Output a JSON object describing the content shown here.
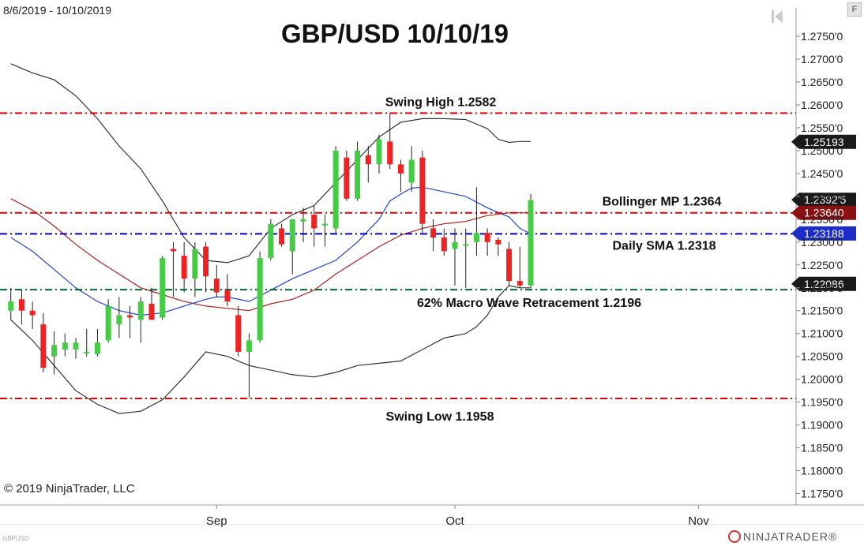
{
  "header": {
    "date_range": "8/6/2019 - 10/10/2019",
    "title": "GBP/USD 10/10/19"
  },
  "footer": {
    "copyright": "© 2019 NinjaTrader, LLC",
    "symbol": "GBPUSD",
    "logo": "NINJATRADER®"
  },
  "toolbar": {
    "f_label": "F",
    "back_icon": "skip-back-icon"
  },
  "colors": {
    "up": "#44cc44",
    "down": "#ee2222",
    "bb_band": "#333333",
    "bb_mid": "#aa2222",
    "sma": "#2244cc",
    "red_line": "#dd0000",
    "blue_line": "#0000cc",
    "green_line": "#006633"
  },
  "chart_data": {
    "type": "candlestick",
    "title": "GBP/USD 10/10/19",
    "ylim": [
      1.1725,
      1.2795
    ],
    "y_ticks": [
      "1.2750'0",
      "1.2700'0",
      "1.2650'0",
      "1.2600'0",
      "1.2550'0",
      "1.2500'0",
      "1.2450'0",
      "1.2400'0",
      "1.2350'0",
      "1.2300'0",
      "1.2250'0",
      "1.2200'0",
      "1.2150'0",
      "1.2100'0",
      "1.2050'0",
      "1.2000'0",
      "1.1950'0",
      "1.1900'0",
      "1.1850'0",
      "1.1800'0",
      "1.1750'0"
    ],
    "x_ticks": [
      "Sep",
      "Oct",
      "Nov"
    ],
    "x_tick_index": [
      19,
      41,
      63.5
    ],
    "x_index_range": [
      -1,
      72.5
    ],
    "candles": [
      {
        "o": 1.215,
        "h": 1.22,
        "l": 1.213,
        "c": 1.217
      },
      {
        "o": 1.2175,
        "h": 1.2195,
        "l": 1.212,
        "c": 1.215
      },
      {
        "o": 1.215,
        "h": 1.217,
        "l": 1.211,
        "c": 1.214
      },
      {
        "o": 1.212,
        "h": 1.2145,
        "l": 1.2015,
        "c": 1.2025
      },
      {
        "o": 1.205,
        "h": 1.2105,
        "l": 1.201,
        "c": 1.2075
      },
      {
        "o": 1.2065,
        "h": 1.21,
        "l": 1.205,
        "c": 1.208
      },
      {
        "o": 1.2065,
        "h": 1.209,
        "l": 1.2045,
        "c": 1.208
      },
      {
        "o": 1.206,
        "h": 1.211,
        "l": 1.205,
        "c": 1.206
      },
      {
        "o": 1.2055,
        "h": 1.211,
        "l": 1.205,
        "c": 1.208
      },
      {
        "o": 1.2085,
        "h": 1.2175,
        "l": 1.208,
        "c": 1.216
      },
      {
        "o": 1.212,
        "h": 1.218,
        "l": 1.209,
        "c": 1.214
      },
      {
        "o": 1.214,
        "h": 1.216,
        "l": 1.209,
        "c": 1.2135
      },
      {
        "o": 1.213,
        "h": 1.218,
        "l": 1.208,
        "c": 1.217
      },
      {
        "o": 1.2165,
        "h": 1.22,
        "l": 1.213,
        "c": 1.213
      },
      {
        "o": 1.2135,
        "h": 1.227,
        "l": 1.213,
        "c": 1.2265
      },
      {
        "o": 1.2285,
        "h": 1.23,
        "l": 1.218,
        "c": 1.228
      },
      {
        "o": 1.227,
        "h": 1.23,
        "l": 1.219,
        "c": 1.222
      },
      {
        "o": 1.222,
        "h": 1.23,
        "l": 1.218,
        "c": 1.2285
      },
      {
        "o": 1.229,
        "h": 1.23,
        "l": 1.219,
        "c": 1.2225
      },
      {
        "o": 1.222,
        "h": 1.225,
        "l": 1.218,
        "c": 1.219
      },
      {
        "o": 1.2195,
        "h": 1.223,
        "l": 1.216,
        "c": 1.217
      },
      {
        "o": 1.214,
        "h": 1.216,
        "l": 1.205,
        "c": 1.206
      },
      {
        "o": 1.206,
        "h": 1.21,
        "l": 1.196,
        "c": 1.2085
      },
      {
        "o": 1.2085,
        "h": 1.228,
        "l": 1.208,
        "c": 1.2265
      },
      {
        "o": 1.2265,
        "h": 1.235,
        "l": 1.226,
        "c": 1.234
      },
      {
        "o": 1.233,
        "h": 1.234,
        "l": 1.229,
        "c": 1.2295
      },
      {
        "o": 1.228,
        "h": 1.235,
        "l": 1.223,
        "c": 1.235
      },
      {
        "o": 1.2345,
        "h": 1.2375,
        "l": 1.23,
        "c": 1.235
      },
      {
        "o": 1.236,
        "h": 1.238,
        "l": 1.229,
        "c": 1.233
      },
      {
        "o": 1.234,
        "h": 1.236,
        "l": 1.229,
        "c": 1.234
      },
      {
        "o": 1.233,
        "h": 1.251,
        "l": 1.232,
        "c": 1.25
      },
      {
        "o": 1.2485,
        "h": 1.25,
        "l": 1.239,
        "c": 1.2395
      },
      {
        "o": 1.2395,
        "h": 1.252,
        "l": 1.239,
        "c": 1.25
      },
      {
        "o": 1.249,
        "h": 1.251,
        "l": 1.243,
        "c": 1.247
      },
      {
        "o": 1.247,
        "h": 1.2535,
        "l": 1.245,
        "c": 1.2525
      },
      {
        "o": 1.252,
        "h": 1.2582,
        "l": 1.246,
        "c": 1.247
      },
      {
        "o": 1.247,
        "h": 1.248,
        "l": 1.241,
        "c": 1.245
      },
      {
        "o": 1.243,
        "h": 1.251,
        "l": 1.241,
        "c": 1.248
      },
      {
        "o": 1.2485,
        "h": 1.25,
        "l": 1.232,
        "c": 1.234
      },
      {
        "o": 1.233,
        "h": 1.235,
        "l": 1.228,
        "c": 1.231
      },
      {
        "o": 1.231,
        "h": 1.233,
        "l": 1.227,
        "c": 1.228
      },
      {
        "o": 1.2285,
        "h": 1.233,
        "l": 1.2205,
        "c": 1.23
      },
      {
        "o": 1.2295,
        "h": 1.233,
        "l": 1.22,
        "c": 1.2295
      },
      {
        "o": 1.23,
        "h": 1.242,
        "l": 1.227,
        "c": 1.232
      },
      {
        "o": 1.232,
        "h": 1.233,
        "l": 1.227,
        "c": 1.23
      },
      {
        "o": 1.2305,
        "h": 1.231,
        "l": 1.227,
        "c": 1.2295
      },
      {
        "o": 1.2285,
        "h": 1.23,
        "l": 1.2205,
        "c": 1.2215
      },
      {
        "o": 1.2215,
        "h": 1.229,
        "l": 1.22,
        "c": 1.2205
      },
      {
        "o": 1.2205,
        "h": 1.2405,
        "l": 1.22,
        "c": 1.2392
      }
    ],
    "bb_upper": [
      [
        0,
        1.269
      ],
      [
        2,
        1.267
      ],
      [
        4,
        1.2655
      ],
      [
        6,
        1.262
      ],
      [
        8,
        1.257
      ],
      [
        10,
        1.251
      ],
      [
        12,
        1.246
      ],
      [
        14,
        1.239
      ],
      [
        16,
        1.231
      ],
      [
        18,
        1.226
      ],
      [
        20,
        1.2255
      ],
      [
        22,
        1.227
      ],
      [
        24,
        1.233
      ],
      [
        26,
        1.236
      ],
      [
        28,
        1.238
      ],
      [
        30,
        1.243
      ],
      [
        32,
        1.248
      ],
      [
        34,
        1.253
      ],
      [
        36,
        1.2562
      ],
      [
        38,
        1.257
      ],
      [
        40,
        1.257
      ],
      [
        42,
        1.2568
      ],
      [
        44,
        1.2548
      ],
      [
        45,
        1.2525
      ],
      [
        46,
        1.2518
      ],
      [
        47,
        1.252
      ],
      [
        48,
        1.252
      ]
    ],
    "bb_mid": [
      [
        0,
        1.2395
      ],
      [
        2,
        1.237
      ],
      [
        4,
        1.2335
      ],
      [
        6,
        1.2295
      ],
      [
        8,
        1.226
      ],
      [
        10,
        1.223
      ],
      [
        12,
        1.22
      ],
      [
        14,
        1.2185
      ],
      [
        16,
        1.217
      ],
      [
        18,
        1.216
      ],
      [
        20,
        1.2155
      ],
      [
        22,
        1.215
      ],
      [
        24,
        1.2165
      ],
      [
        26,
        1.2175
      ],
      [
        28,
        1.2195
      ],
      [
        30,
        1.223
      ],
      [
        32,
        1.226
      ],
      [
        34,
        1.229
      ],
      [
        36,
        1.2315
      ],
      [
        38,
        1.233
      ],
      [
        40,
        1.234
      ],
      [
        42,
        1.2345
      ],
      [
        44,
        1.2358
      ],
      [
        46,
        1.2364
      ],
      [
        48,
        1.2364
      ]
    ],
    "bb_lower": [
      [
        0,
        1.213
      ],
      [
        2,
        1.2085
      ],
      [
        4,
        1.203
      ],
      [
        6,
        1.1975
      ],
      [
        8,
        1.1945
      ],
      [
        10,
        1.1925
      ],
      [
        12,
        1.193
      ],
      [
        14,
        1.1955
      ],
      [
        16,
        1.2005
      ],
      [
        18,
        1.206
      ],
      [
        20,
        1.205
      ],
      [
        22,
        1.203
      ],
      [
        24,
        1.202
      ],
      [
        26,
        1.201
      ],
      [
        28,
        1.2005
      ],
      [
        30,
        1.2015
      ],
      [
        32,
        1.203
      ],
      [
        34,
        1.2035
      ],
      [
        36,
        1.204
      ],
      [
        38,
        1.2065
      ],
      [
        40,
        1.209
      ],
      [
        42,
        1.21
      ],
      [
        43,
        1.2115
      ],
      [
        44,
        1.214
      ],
      [
        45,
        1.218
      ],
      [
        46,
        1.2205
      ],
      [
        47,
        1.22
      ],
      [
        48,
        1.22
      ]
    ],
    "sma": [
      [
        0,
        1.231
      ],
      [
        2,
        1.228
      ],
      [
        4,
        1.224
      ],
      [
        6,
        1.22
      ],
      [
        8,
        1.217
      ],
      [
        10,
        1.215
      ],
      [
        12,
        1.214
      ],
      [
        14,
        1.2145
      ],
      [
        16,
        1.216
      ],
      [
        18,
        1.2175
      ],
      [
        19,
        1.218
      ],
      [
        20,
        1.218
      ],
      [
        22,
        1.217
      ],
      [
        24,
        1.2195
      ],
      [
        26,
        1.222
      ],
      [
        28,
        1.224
      ],
      [
        30,
        1.226
      ],
      [
        32,
        1.23
      ],
      [
        34,
        1.235
      ],
      [
        35,
        1.239
      ],
      [
        36,
        1.2405
      ],
      [
        37,
        1.2418
      ],
      [
        38,
        1.242
      ],
      [
        40,
        1.241
      ],
      [
        42,
        1.24
      ],
      [
        44,
        1.2375
      ],
      [
        46,
        1.2355
      ],
      [
        47,
        1.233
      ],
      [
        48,
        1.2318
      ]
    ],
    "levels": [
      {
        "value": 1.2582,
        "label": "Swing High 1.2582",
        "color": "#dd0000",
        "style": "dashdot"
      },
      {
        "value": 1.2364,
        "label": "Bollinger MP 1.2364",
        "color": "#dd0000",
        "style": "dashdot"
      },
      {
        "value": 1.2318,
        "label": "Daily SMA 1.2318",
        "color": "#0000cc",
        "style": "dashdot"
      },
      {
        "value": 1.2196,
        "label": "62% Macro Wave Retracement 1.2196",
        "color": "#006633",
        "style": "dashdot"
      },
      {
        "value": 1.1958,
        "label": "Swing Low 1.1958",
        "color": "#dd0000",
        "style": "dashdot"
      }
    ],
    "price_flags": [
      {
        "value": 1.25193,
        "label": "1.25193",
        "bg": "#1a1a1a"
      },
      {
        "value": 1.23925,
        "label": "1.2392'5",
        "bg": "#1a1a1a"
      },
      {
        "value": 1.2364,
        "label": "1.23640",
        "bg": "#8b1010"
      },
      {
        "value": 1.23188,
        "label": "1.23188",
        "bg": "#1c2cc8"
      },
      {
        "value": 1.22086,
        "label": "1.22086",
        "bg": "#1a1a1a"
      }
    ]
  }
}
